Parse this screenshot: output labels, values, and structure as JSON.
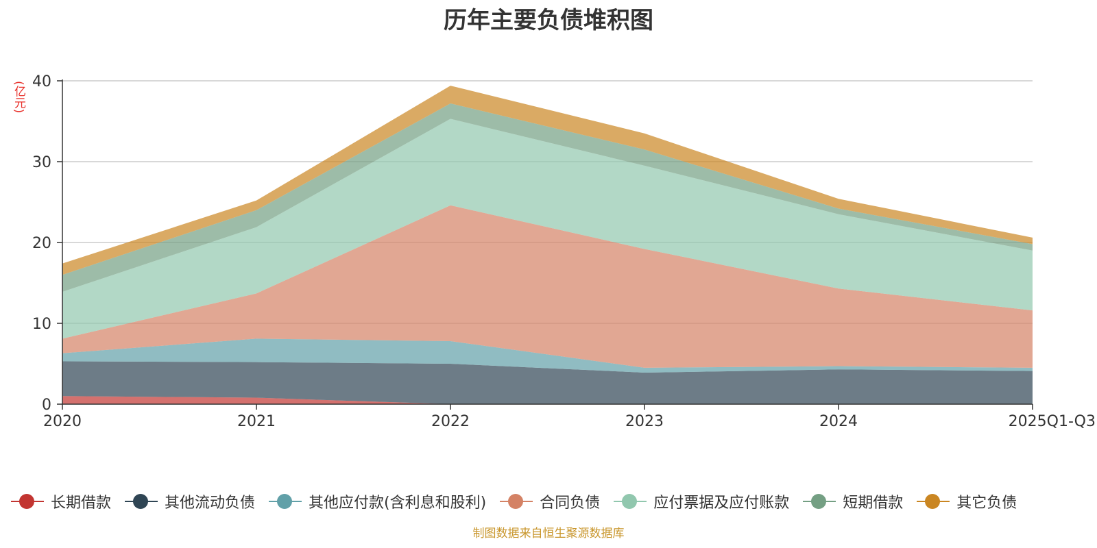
{
  "chart_data": {
    "type": "area",
    "stacked": true,
    "title": "历年主要负债堆积图",
    "ylabel": "(亿元)",
    "xlabel": "",
    "categories": [
      "2020",
      "2021",
      "2022",
      "2023",
      "2024",
      "2025Q1-Q3"
    ],
    "ylim": [
      0,
      40
    ],
    "yticks": [
      0,
      10,
      20,
      30,
      40
    ],
    "grid": true,
    "legend_position": "bottom",
    "series": [
      {
        "name": "长期借款",
        "color": "#c23531",
        "values": [
          1.0,
          0.8,
          0.0,
          0.0,
          0.0,
          0.0
        ]
      },
      {
        "name": "其他流动负债",
        "color": "#2f4554",
        "values": [
          4.3,
          4.4,
          5.0,
          3.9,
          4.3,
          4.1
        ]
      },
      {
        "name": "其他应付款(含利息和股利)",
        "color": "#61a0a8",
        "values": [
          1.0,
          2.9,
          2.8,
          0.6,
          0.4,
          0.4
        ]
      },
      {
        "name": "合同负债",
        "color": "#d48265",
        "values": [
          1.8,
          5.6,
          16.8,
          14.7,
          9.6,
          7.1
        ]
      },
      {
        "name": "应付票据及应付账款",
        "color": "#91c7ae",
        "values": [
          5.8,
          8.2,
          10.7,
          10.3,
          9.2,
          7.4
        ]
      },
      {
        "name": "短期借款",
        "color": "#749f83",
        "values": [
          2.1,
          2.1,
          1.9,
          2.0,
          0.7,
          0.8
        ]
      },
      {
        "name": "其它负债",
        "color": "#ca8622",
        "values": [
          1.4,
          1.2,
          2.2,
          2.0,
          1.2,
          0.8
        ]
      }
    ]
  },
  "source_note": "制图数据来自恒生聚源数据库"
}
